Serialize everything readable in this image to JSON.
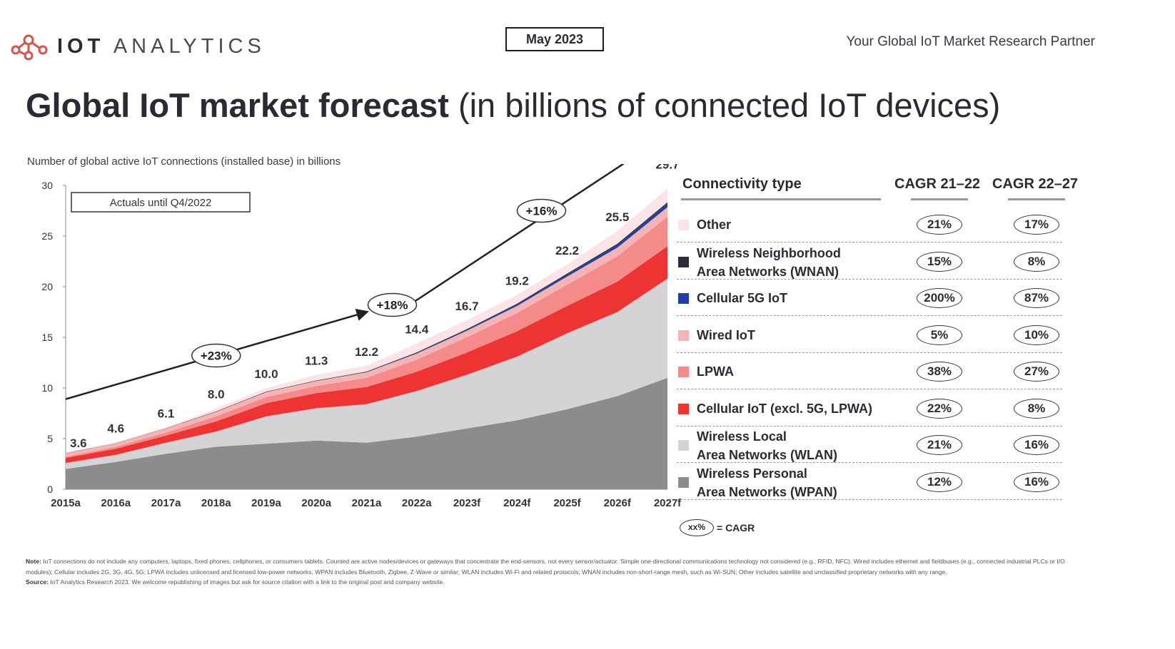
{
  "header": {
    "brand_bold": "IOT",
    "brand_light": "ANALYTICS",
    "date": "May 2023",
    "tagline": "Your Global IoT Market Research Partner"
  },
  "title_bold": "Global IoT market forecast",
  "title_rest": " (in billions of connected IoT devices)",
  "chart_data": {
    "type": "area",
    "subtitle": "Number of global active IoT connections (installed base) in billions",
    "annotation_box": "Actuals until Q4/2022",
    "categories": [
      "2015a",
      "2016a",
      "2017a",
      "2018a",
      "2019a",
      "2020a",
      "2021a",
      "2022a",
      "2023f",
      "2024f",
      "2025f",
      "2026f",
      "2027f"
    ],
    "ylim": [
      0,
      30
    ],
    "yticks": [
      0,
      5,
      10,
      15,
      20,
      25,
      30
    ],
    "totals": [
      3.6,
      4.6,
      6.1,
      8.0,
      10.0,
      11.3,
      12.2,
      14.4,
      16.7,
      19.2,
      22.2,
      25.5,
      29.7
    ],
    "total_labels": [
      "3.6",
      "4.6",
      "6.1",
      "8.0",
      "10.0",
      "11.3",
      "12.2",
      "14.4",
      "16.7",
      "19.2",
      "22.2",
      "25.5",
      "29.7"
    ],
    "series": [
      {
        "name": "Wireless Personal Area Networks (WPAN)",
        "color": "#8c8c8e",
        "values": [
          2.0,
          2.7,
          3.5,
          4.2,
          4.5,
          4.8,
          4.6,
          5.2,
          6.0,
          6.8,
          7.9,
          9.2,
          11.0
        ]
      },
      {
        "name": "Wireless Local Area Networks (WLAN)",
        "color": "#d4d4d6",
        "values": [
          0.6,
          0.7,
          1.1,
          1.5,
          2.7,
          3.2,
          3.8,
          4.5,
          5.3,
          6.3,
          7.5,
          8.3,
          9.8
        ]
      },
      {
        "name": "Cellular IoT (excl. 5G, LPWA)",
        "color": "#ee3333",
        "values": [
          0.5,
          0.6,
          0.7,
          1.0,
          1.3,
          1.5,
          1.7,
          1.9,
          2.2,
          2.5,
          2.7,
          3.0,
          3.2
        ]
      },
      {
        "name": "LPWA",
        "color": "#f58a8a",
        "values": [
          0.1,
          0.2,
          0.3,
          0.5,
          0.6,
          0.7,
          0.9,
          1.2,
          1.5,
          1.8,
          2.1,
          2.5,
          2.9
        ]
      },
      {
        "name": "Wired IoT",
        "color": "#f6b3b3",
        "values": [
          0.35,
          0.35,
          0.4,
          0.45,
          0.5,
          0.5,
          0.55,
          0.6,
          0.65,
          0.7,
          0.8,
          0.85,
          0.95
        ]
      },
      {
        "name": "Cellular 5G IoT",
        "color": "#1f3fa8",
        "values": [
          0.0,
          0.0,
          0.0,
          0.0,
          0.0,
          0.0,
          0.02,
          0.05,
          0.09,
          0.14,
          0.2,
          0.27,
          0.35
        ]
      },
      {
        "name": "Wireless Neighborhood Area Networks (WNAN)",
        "color": "#2b2b3a",
        "values": [
          0.02,
          0.02,
          0.03,
          0.04,
          0.05,
          0.05,
          0.06,
          0.07,
          0.08,
          0.09,
          0.1,
          0.12,
          0.14
        ]
      },
      {
        "name": "Other",
        "color": "#fbe4e6",
        "values": [
          0.03,
          0.03,
          0.07,
          0.31,
          0.35,
          0.55,
          0.57,
          0.88,
          0.88,
          0.87,
          0.9,
          1.26,
          1.36
        ]
      }
    ],
    "cagr_arrow": {
      "start": 8.9,
      "points": [
        {
          "category": "2021a",
          "value": 17.5
        },
        {
          "category": "2027f",
          "value": 35
        }
      ]
    },
    "cagr_bubbles": [
      {
        "label": "+23%",
        "category": "2018a",
        "value": 13.2
      },
      {
        "label": "+18%",
        "category": "2021a",
        "value": 18.2
      },
      {
        "label": "+16%",
        "category": "2025f",
        "value": 27.5
      }
    ]
  },
  "legend": {
    "heading": "Connectivity type",
    "col1": "CAGR 21–22",
    "col2": "CAGR 22–27",
    "rows": [
      {
        "line1": "Other",
        "line2": "",
        "color": "#fbe4e6",
        "c1": "21%",
        "c2": "17%"
      },
      {
        "line1": "Wireless Neighborhood",
        "line2": "Area Networks (WNAN)",
        "color": "#2b2b3a",
        "c1": "15%",
        "c2": "8%"
      },
      {
        "line1": "Cellular 5G IoT",
        "line2": "",
        "color": "#1f3fa8",
        "c1": "200%",
        "c2": "87%"
      },
      {
        "line1": "Wired IoT",
        "line2": "",
        "color": "#f6b3b3",
        "c1": "5%",
        "c2": "10%"
      },
      {
        "line1": "LPWA",
        "line2": "",
        "color": "#f58a8a",
        "c1": "38%",
        "c2": "27%"
      },
      {
        "line1": "Cellular IoT (excl. 5G, LPWA)",
        "line2": "",
        "color": "#ee3333",
        "c1": "22%",
        "c2": "8%"
      },
      {
        "line1": "Wireless Local",
        "line2": "Area Networks (WLAN)",
        "color": "#d4d4d6",
        "c1": "21%",
        "c2": "16%"
      },
      {
        "line1": "Wireless Personal",
        "line2": "Area Networks (WPAN)",
        "color": "#8c8c8e",
        "c1": "12%",
        "c2": "16%"
      }
    ],
    "cagr_key_pill": "xx%",
    "cagr_key_text": "= CAGR"
  },
  "footer": {
    "note_label": "Note:",
    "note": "IoT connections do not include any computers, laptops, fixed phones, cellphones, or consumers tablets. Counted are active nodes/devices or gateways that concentrate the end-sensors, not every sensor/actuator. Simple one-directional communications technology not considered (e.g., RFID, NFC). Wired includes ethernet and fieldbuses (e.g., connected industrial PLCs or I/O modules); Cellular includes 2G, 3G, 4G, 5G; LPWA includes unlicensed and licensed low-power networks; WPAN includes Bluetooth, Zigbee, Z-Wave or similar; WLAN includes Wi-Fi and related protocols; WNAN includes non-short-range mesh, such as Wi-SUN; Other includes satellite and unclassified proprietary networks with any range.",
    "source_label": "Source:",
    "source": "IoT Analytics Research 2023. We welcome republishing of images but ask for source citation with a link to the original post and company website."
  }
}
